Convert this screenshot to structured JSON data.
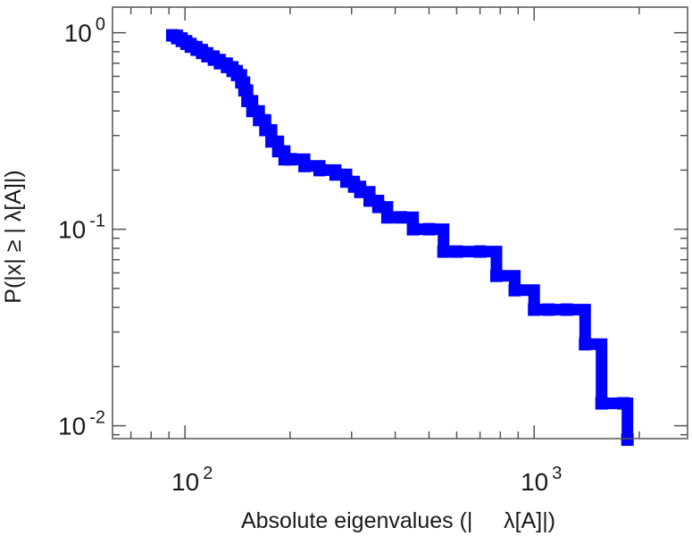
{
  "chart_data": {
    "type": "line",
    "xlabel": "Absolute eigenvalues (|     λ[A]|)",
    "ylabel": "P(|x| ≥ | λ[A]|)",
    "x_scale": "log",
    "y_scale": "log",
    "xlim": [
      62,
      2750
    ],
    "ylim": [
      0.0086,
      1.35
    ],
    "x_major_ticks": [
      {
        "value": 100,
        "base": "10",
        "exp": "2"
      },
      {
        "value": 1000,
        "base": "10",
        "exp": "3"
      }
    ],
    "y_major_ticks": [
      {
        "value": 1,
        "base": "10",
        "exp": "0"
      },
      {
        "value": 0.1,
        "base": "10",
        "exp": "-1"
      },
      {
        "value": 0.01,
        "base": "10",
        "exp": "-2"
      }
    ],
    "grid": false,
    "colors": {
      "series": "#0000ff",
      "axes": "#555555"
    },
    "series": [
      {
        "x": [
          92,
          95,
          98,
          101,
          104,
          108,
          112,
          116,
          121,
          126,
          132,
          137,
          141,
          145,
          148,
          151,
          156,
          163,
          170,
          177,
          185,
          193,
          201,
          220,
          243,
          270,
          290,
          305,
          318,
          338,
          358,
          380,
          415,
          450,
          500,
          550,
          600,
          700,
          780,
          880,
          1000,
          1100,
          1240,
          1400,
          1560,
          1800,
          1850
        ],
        "y": [
          0.97,
          0.94,
          0.91,
          0.88,
          0.85,
          0.82,
          0.79,
          0.76,
          0.73,
          0.7,
          0.67,
          0.64,
          0.61,
          0.56,
          0.51,
          0.45,
          0.4,
          0.36,
          0.32,
          0.28,
          0.25,
          0.227,
          0.227,
          0.21,
          0.2,
          0.19,
          0.175,
          0.165,
          0.155,
          0.14,
          0.13,
          0.115,
          0.115,
          0.1,
          0.1,
          0.077,
          0.077,
          0.077,
          0.058,
          0.049,
          0.039,
          0.039,
          0.039,
          0.026,
          0.013,
          0.013,
          0.0085
        ]
      }
    ]
  }
}
